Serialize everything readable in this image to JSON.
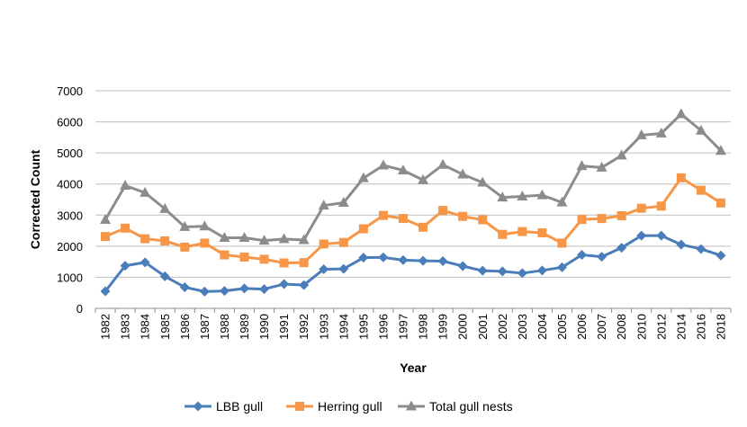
{
  "chart_data": {
    "type": "line",
    "title": "",
    "xlabel": "Year",
    "ylabel": "Corrected Count",
    "ylim": [
      0,
      7000
    ],
    "yticks": [
      0,
      1000,
      2000,
      3000,
      4000,
      5000,
      6000,
      7000
    ],
    "grid": "horizontal",
    "legend_position": "bottom",
    "categories": [
      "1982",
      "1983",
      "1984",
      "1985",
      "1986",
      "1987",
      "1988",
      "1989",
      "1990",
      "1991",
      "1992",
      "1993",
      "1994",
      "1995",
      "1996",
      "1997",
      "1998",
      "1999",
      "2000",
      "2001",
      "2002",
      "2003",
      "2004",
      "2005",
      "2006",
      "2007",
      "2008",
      "2010",
      "2012",
      "2014",
      "2016",
      "2018"
    ],
    "series": [
      {
        "name": "LBB gull",
        "color": "#4a7ebb",
        "marker": "diamond",
        "values": [
          550,
          1370,
          1480,
          1030,
          680,
          540,
          560,
          640,
          620,
          780,
          750,
          1260,
          1270,
          1630,
          1640,
          1550,
          1530,
          1520,
          1360,
          1210,
          1190,
          1130,
          1220,
          1320,
          1720,
          1660,
          1950,
          2340,
          2340,
          2050,
          1910,
          1700
        ]
      },
      {
        "name": "Herring gull",
        "color": "#f79646",
        "marker": "square",
        "values": [
          2310,
          2580,
          2240,
          2170,
          1970,
          2100,
          1720,
          1650,
          1580,
          1460,
          1470,
          2070,
          2120,
          2560,
          2990,
          2890,
          2610,
          3150,
          2960,
          2850,
          2380,
          2470,
          2430,
          2100,
          2860,
          2890,
          2980,
          3220,
          3290,
          4200,
          3800,
          3390
        ]
      },
      {
        "name": "Total gull nests",
        "color": "#8c8c8c",
        "marker": "triangle",
        "values": [
          2850,
          3950,
          3720,
          3200,
          2620,
          2640,
          2270,
          2270,
          2180,
          2230,
          2200,
          3310,
          3400,
          4190,
          4600,
          4440,
          4130,
          4620,
          4310,
          4050,
          3570,
          3600,
          3640,
          3410,
          4580,
          4530,
          4920,
          5570,
          5630,
          6250,
          5720,
          5070
        ]
      }
    ]
  }
}
